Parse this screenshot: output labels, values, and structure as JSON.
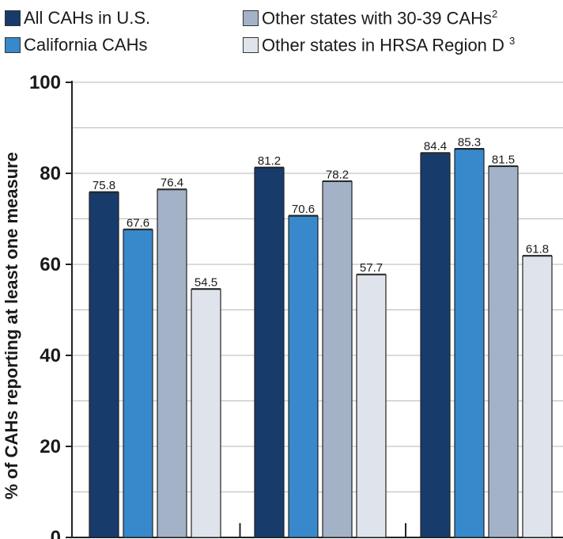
{
  "chart_data": {
    "type": "bar",
    "categories": [
      "",
      "",
      ""
    ],
    "ylabel": "% of CAHs reporting at least one measure",
    "ylim": [
      0,
      100
    ],
    "yticks": [
      0,
      20,
      40,
      60,
      80,
      100
    ],
    "grid": true,
    "legend_position": "top",
    "series": [
      {
        "name": "All CAHs in U.S.",
        "color": "#173c6b",
        "values": [
          75.8,
          81.2,
          84.4
        ],
        "labels": [
          "75.8",
          "81.2",
          "84.4"
        ]
      },
      {
        "name": "California CAHs",
        "color": "#3789cb",
        "values": [
          67.6,
          70.6,
          85.3
        ],
        "labels": [
          "67.6",
          "70.6",
          "85.3"
        ]
      },
      {
        "name": "Other states with 30-39 CAHs",
        "sup": "2",
        "color": "#a3b2c6",
        "values": [
          76.4,
          78.2,
          81.5
        ],
        "labels": [
          "76.4",
          "78.2",
          "81.5"
        ]
      },
      {
        "name": "Other states in HRSA Region D",
        "sup": "3",
        "color": "#dfe4ec",
        "values": [
          54.5,
          57.7,
          61.8
        ],
        "labels": [
          "54.5",
          "57.7",
          "61.8"
        ]
      }
    ]
  }
}
